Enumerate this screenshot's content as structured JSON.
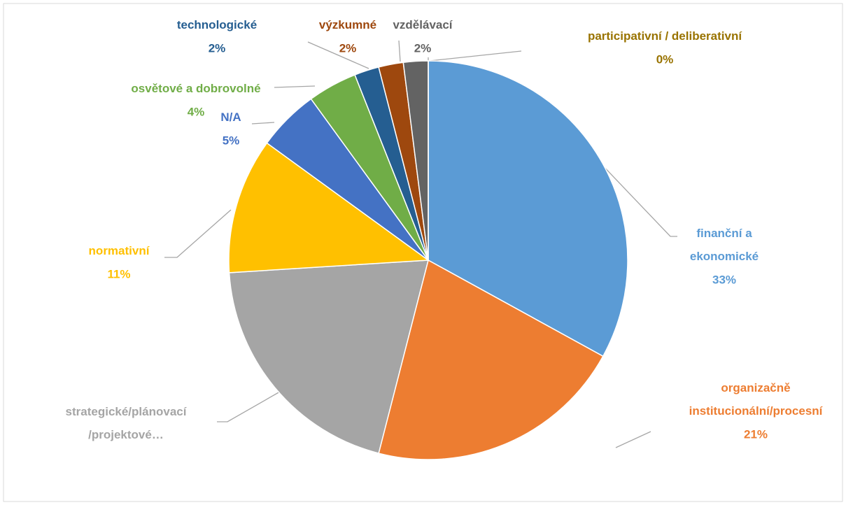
{
  "chart_data": {
    "type": "pie",
    "categories": [
      "finanční a\nekonomické",
      "organizačně\ninstitucionální/procesní",
      "strategické/plánovací\n/projektové…",
      "normativní",
      "N/A",
      "osvětové a dobrovolné",
      "technologické",
      "výzkumné",
      "vzdělávací",
      "participativní / deliberativní"
    ],
    "values": [
      33,
      21,
      20,
      11,
      5,
      4,
      2,
      2,
      2,
      0
    ],
    "value_labels": [
      "33%",
      "21%",
      null,
      "11%",
      "5%",
      "4%",
      "2%",
      "2%",
      "2%",
      "0%"
    ],
    "colors": [
      "#5B9BD5",
      "#ED7D31",
      "#A5A5A5",
      "#FFC000",
      "#4472C4",
      "#70AD47",
      "#255E91",
      "#9E480E",
      "#636363",
      "#997300"
    ]
  }
}
